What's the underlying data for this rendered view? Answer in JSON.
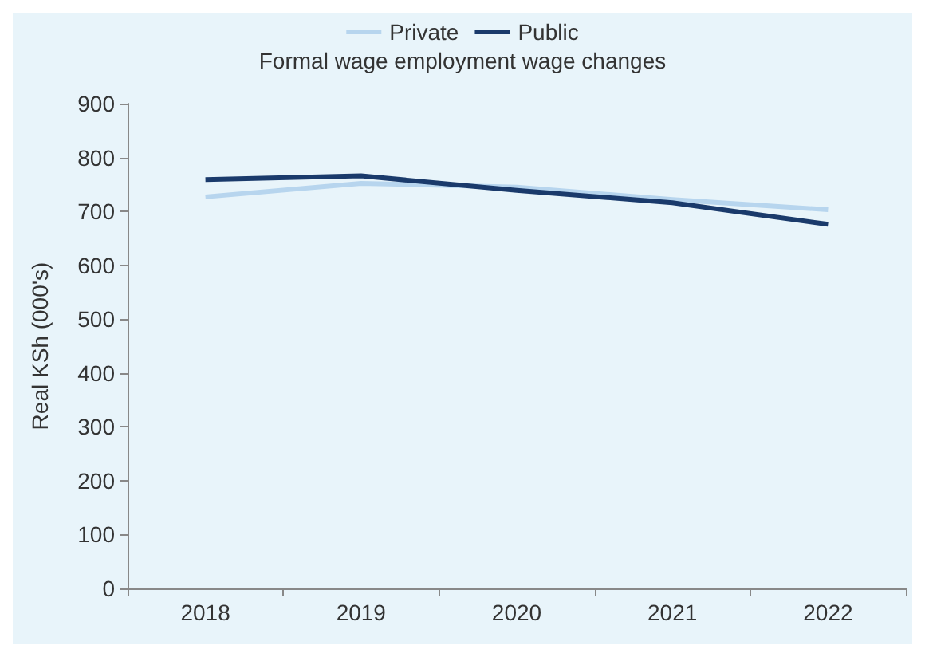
{
  "chart_data": {
    "type": "line",
    "title": "Formal wage employment wage changes",
    "ylabel": "Real KSh (000's)",
    "categories": [
      "2018",
      "2019",
      "2020",
      "2021",
      "2022"
    ],
    "series": [
      {
        "name": "Private",
        "color": "#b7d5ee",
        "values": [
          727,
          752,
          745,
          722,
          703
        ]
      },
      {
        "name": "Public",
        "color": "#1a3a6b",
        "values": [
          759,
          766,
          739,
          716,
          676
        ]
      }
    ],
    "ylim": [
      0,
      900
    ],
    "yticks": [
      0,
      100,
      200,
      300,
      400,
      500,
      600,
      700,
      800,
      900
    ],
    "grid": false,
    "legend": "top",
    "marker": "none",
    "line_style": "solid"
  }
}
